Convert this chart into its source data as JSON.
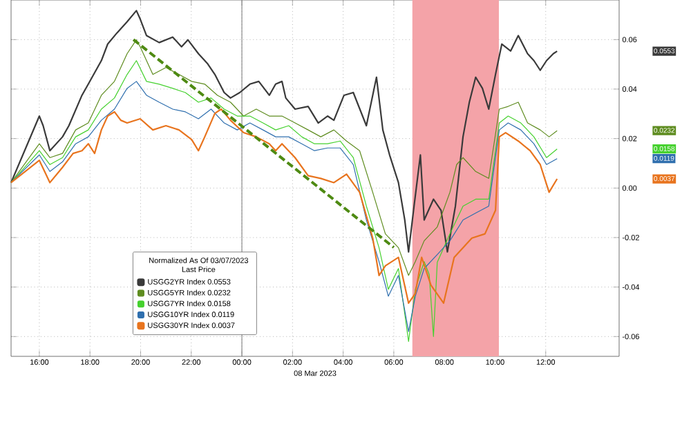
{
  "chart_data": {
    "type": "line",
    "xlabel": "08 Mar 2023",
    "legend_title": "Normalized As Of 03/07/2023 Last Price",
    "legend": "bottom left",
    "grid": true,
    "xlim": [
      "2023-03-07T14:53",
      "2023-03-08T14:54"
    ],
    "ylim": [
      -0.068,
      0.076
    ],
    "xticks": [
      {
        "value": "2023-03-07T16:00",
        "label": "16:00"
      },
      {
        "value": "2023-03-07T18:00",
        "label": "18:00"
      },
      {
        "value": "2023-03-07T20:00",
        "label": "20:00"
      },
      {
        "value": "2023-03-07T22:00",
        "label": "22:00"
      },
      {
        "value": "2023-03-08T00:00",
        "label": "00:00"
      },
      {
        "value": "2023-03-08T02:00",
        "label": "02:00"
      },
      {
        "value": "2023-03-08T04:00",
        "label": "04:00"
      },
      {
        "value": "2023-03-08T06:00",
        "label": "06:00"
      },
      {
        "value": "2023-03-08T08:00",
        "label": "08:00"
      },
      {
        "value": "2023-03-08T10:00",
        "label": "10:00"
      },
      {
        "value": "2023-03-08T12:00",
        "label": "12:00"
      }
    ],
    "yticks": [
      -0.06,
      -0.04,
      -0.02,
      {
        "value": 0,
        "label": "0.00"
      },
      0.02,
      0.04,
      0.06
    ],
    "ref_lines": [
      {
        "axis": "x",
        "value": "2023-03-08T00:00",
        "color": "#8c8c8c"
      }
    ],
    "bands": [
      {
        "axis": "x",
        "from": "2023-03-08T06:44",
        "to": "2023-03-08T10:09",
        "color": "#f4a3a8"
      }
    ],
    "series": [
      {
        "name": "USGG2YR Index 0.0553",
        "color": "#3a3a3a",
        "x": [
          "2023-03-07T14:53",
          "2023-03-07T16:00",
          "2023-03-07T16:09",
          "2023-03-07T16:25",
          "2023-03-07T16:55",
          "2023-03-07T17:10",
          "2023-03-07T17:41",
          "2023-03-07T17:56",
          "2023-03-07T18:27",
          "2023-03-07T18:42",
          "2023-03-07T19:04",
          "2023-03-07T19:28",
          "2023-03-07T19:50",
          "2023-03-07T19:59",
          "2023-03-07T20:14",
          "2023-03-07T20:44",
          "2023-03-07T21:16",
          "2023-03-07T21:37",
          "2023-03-07T21:52",
          "2023-03-07T22:17",
          "2023-03-07T22:38",
          "2023-03-07T22:56",
          "2023-03-07T23:18",
          "2023-03-07T23:33",
          "2023-03-07T23:55",
          "2023-03-08T00:19",
          "2023-03-08T00:40",
          "2023-03-08T01:05",
          "2023-03-08T01:20",
          "2023-03-08T01:35",
          "2023-03-08T01:44",
          "2023-03-08T02:06",
          "2023-03-08T02:37",
          "2023-03-08T03:01",
          "2023-03-08T03:23",
          "2023-03-08T03:38",
          "2023-03-08T04:02",
          "2023-03-08T04:24",
          "2023-03-08T04:55",
          "2023-03-08T05:19",
          "2023-03-08T05:34",
          "2023-03-08T05:50",
          "2023-03-08T06:11",
          "2023-03-08T06:26",
          "2023-03-08T06:35",
          "2023-03-08T06:48",
          "2023-03-08T07:03",
          "2023-03-08T07:12",
          "2023-03-08T07:34",
          "2023-03-08T07:52",
          "2023-03-08T08:07",
          "2023-03-08T08:26",
          "2023-03-08T08:44",
          "2023-03-08T08:59",
          "2023-03-08T09:14",
          "2023-03-08T09:30",
          "2023-03-08T09:45",
          "2023-03-08T10:01",
          "2023-03-08T10:16",
          "2023-03-08T10:37",
          "2023-03-08T10:55",
          "2023-03-08T11:17",
          "2023-03-08T11:32",
          "2023-03-08T11:47",
          "2023-03-08T12:02",
          "2023-03-08T12:18",
          "2023-03-08T12:27"
        ],
        "values": [
          0.0022,
          0.0291,
          0.0252,
          0.0151,
          0.0207,
          0.0252,
          0.0375,
          0.042,
          0.0515,
          0.0582,
          0.0627,
          0.0672,
          0.0717,
          0.0683,
          0.0616,
          0.0588,
          0.061,
          0.0571,
          0.0599,
          0.0543,
          0.0504,
          0.0459,
          0.0386,
          0.0364,
          0.0386,
          0.042,
          0.0431,
          0.0375,
          0.042,
          0.0431,
          0.0364,
          0.0319,
          0.033,
          0.0263,
          0.0291,
          0.0274,
          0.0375,
          0.0386,
          0.0252,
          0.0448,
          0.0235,
          0.0134,
          0.0022,
          -0.0129,
          -0.0258,
          -0.0073,
          0.0134,
          -0.0129,
          -0.0045,
          -0.009,
          -0.0258,
          -0.0073,
          0.0207,
          0.0347,
          0.0448,
          0.0403,
          0.0319,
          0.0459,
          0.0582,
          0.0554,
          0.0616,
          0.0543,
          0.0515,
          0.0476,
          0.0515,
          0.0543,
          0.0553
        ]
      },
      {
        "name": "USGG5YR Index 0.0232",
        "color": "#5e8c1f",
        "x": [
          "2023-03-07T14:53",
          "2023-03-07T16:00",
          "2023-03-07T16:25",
          "2023-03-07T16:55",
          "2023-03-07T17:26",
          "2023-03-07T17:56",
          "2023-03-07T18:27",
          "2023-03-07T18:58",
          "2023-03-07T19:28",
          "2023-03-07T19:50",
          "2023-03-07T19:59",
          "2023-03-07T20:29",
          "2023-03-07T21:00",
          "2023-03-07T21:31",
          "2023-03-07T22:01",
          "2023-03-07T22:32",
          "2023-03-07T23:02",
          "2023-03-07T23:33",
          "2023-03-08T00:04",
          "2023-03-08T00:34",
          "2023-03-08T01:05",
          "2023-03-08T01:35",
          "2023-03-08T02:06",
          "2023-03-08T02:37",
          "2023-03-08T03:07",
          "2023-03-08T03:38",
          "2023-03-08T04:08",
          "2023-03-08T04:39",
          "2023-03-08T05:10",
          "2023-03-08T05:40",
          "2023-03-08T06:11",
          "2023-03-08T06:35",
          "2023-03-08T06:51",
          "2023-03-08T07:12",
          "2023-03-08T07:43",
          "2023-03-08T08:13",
          "2023-03-08T08:29",
          "2023-03-08T08:44",
          "2023-03-08T09:14",
          "2023-03-08T09:45",
          "2023-03-08T10:10",
          "2023-03-08T10:31",
          "2023-03-08T10:55",
          "2023-03-08T11:17",
          "2023-03-08T11:47",
          "2023-03-08T12:08",
          "2023-03-08T12:27"
        ],
        "values": [
          0.0022,
          0.0179,
          0.0123,
          0.014,
          0.0235,
          0.0263,
          0.0375,
          0.0431,
          0.0543,
          0.0599,
          0.0571,
          0.0459,
          0.0487,
          0.0459,
          0.0431,
          0.042,
          0.0375,
          0.0347,
          0.0291,
          0.0319,
          0.0291,
          0.0291,
          0.0263,
          0.0235,
          0.0207,
          0.0235,
          0.019,
          0.0151,
          -0.0017,
          -0.0185,
          -0.0241,
          -0.0353,
          -0.0297,
          -0.0213,
          -0.0157,
          -0.0017,
          0.0095,
          0.0123,
          0.0067,
          0.0039,
          0.0319,
          0.033,
          0.0347,
          0.0263,
          0.0235,
          0.0207,
          0.0232
        ]
      },
      {
        "name": "USGG7YR Index 0.0158",
        "color": "#45d12e",
        "x": [
          "2023-03-07T14:53",
          "2023-03-07T16:00",
          "2023-03-07T16:25",
          "2023-03-07T16:55",
          "2023-03-07T17:26",
          "2023-03-07T17:56",
          "2023-03-07T18:27",
          "2023-03-07T18:58",
          "2023-03-07T19:28",
          "2023-03-07T19:50",
          "2023-03-07T20:14",
          "2023-03-07T20:44",
          "2023-03-07T21:16",
          "2023-03-07T21:46",
          "2023-03-07T22:17",
          "2023-03-07T22:47",
          "2023-03-07T23:18",
          "2023-03-07T23:49",
          "2023-03-08T00:19",
          "2023-03-08T00:50",
          "2023-03-08T01:20",
          "2023-03-08T01:51",
          "2023-03-08T02:22",
          "2023-03-08T02:52",
          "2023-03-08T03:23",
          "2023-03-08T03:53",
          "2023-03-08T04:24",
          "2023-03-08T04:55",
          "2023-03-08T05:25",
          "2023-03-08T05:47",
          "2023-03-08T06:11",
          "2023-03-08T06:35",
          "2023-03-08T06:51",
          "2023-03-08T07:12",
          "2023-03-08T07:24",
          "2023-03-08T07:34",
          "2023-03-08T07:43",
          "2023-03-08T08:13",
          "2023-03-08T08:44",
          "2023-03-08T09:14",
          "2023-03-08T09:45",
          "2023-03-08T10:10",
          "2023-03-08T10:31",
          "2023-03-08T11:01",
          "2023-03-08T11:32",
          "2023-03-08T12:02",
          "2023-03-08T12:27"
        ],
        "values": [
          0.0022,
          0.0151,
          0.0095,
          0.0123,
          0.0207,
          0.0235,
          0.0319,
          0.0364,
          0.0459,
          0.0515,
          0.0431,
          0.042,
          0.0403,
          0.0386,
          0.0347,
          0.0364,
          0.0319,
          0.0291,
          0.0291,
          0.0263,
          0.0235,
          0.0252,
          0.0207,
          0.0179,
          0.0179,
          0.019,
          0.0123,
          -0.0073,
          -0.0241,
          -0.0409,
          -0.0325,
          -0.062,
          -0.0409,
          -0.0297,
          -0.035,
          -0.06,
          -0.03,
          -0.0185,
          -0.0073,
          -0.0045,
          -0.0045,
          0.0263,
          0.0291,
          0.0263,
          0.0207,
          0.0123,
          0.0158
        ]
      },
      {
        "name": "USGG10YR Index 0.0119",
        "color": "#2f6fae",
        "x": [
          "2023-03-07T14:53",
          "2023-03-07T16:00",
          "2023-03-07T16:25",
          "2023-03-07T16:55",
          "2023-03-07T17:26",
          "2023-03-07T17:56",
          "2023-03-07T18:27",
          "2023-03-07T18:58",
          "2023-03-07T19:28",
          "2023-03-07T19:50",
          "2023-03-07T20:14",
          "2023-03-07T20:44",
          "2023-03-07T21:16",
          "2023-03-07T21:46",
          "2023-03-07T22:17",
          "2023-03-07T22:47",
          "2023-03-07T23:18",
          "2023-03-07T23:49",
          "2023-03-08T00:19",
          "2023-03-08T00:50",
          "2023-03-08T01:20",
          "2023-03-08T01:51",
          "2023-03-08T02:22",
          "2023-03-08T02:52",
          "2023-03-08T03:23",
          "2023-03-08T03:53",
          "2023-03-08T04:24",
          "2023-03-08T04:55",
          "2023-03-08T05:25",
          "2023-03-08T05:47",
          "2023-03-08T06:11",
          "2023-03-08T06:35",
          "2023-03-08T06:51",
          "2023-03-08T07:12",
          "2023-03-08T07:43",
          "2023-03-08T08:13",
          "2023-03-08T08:44",
          "2023-03-08T09:14",
          "2023-03-08T09:45",
          "2023-03-08T10:10",
          "2023-03-08T10:31",
          "2023-03-08T11:01",
          "2023-03-08T11:32",
          "2023-03-08T12:02",
          "2023-03-08T12:27"
        ],
        "values": [
          0.0022,
          0.0134,
          0.0067,
          0.0106,
          0.0179,
          0.0207,
          0.0274,
          0.0319,
          0.0403,
          0.0431,
          0.0375,
          0.0347,
          0.0319,
          0.0308,
          0.028,
          0.0319,
          0.0263,
          0.0235,
          0.0263,
          0.0235,
          0.0207,
          0.0207,
          0.0179,
          0.0151,
          0.0162,
          0.0162,
          0.0095,
          -0.0129,
          -0.0297,
          -0.0437,
          -0.0353,
          -0.058,
          -0.0437,
          -0.0325,
          -0.0269,
          -0.0213,
          -0.0129,
          -0.0101,
          -0.0073,
          0.0235,
          0.0263,
          0.0235,
          0.0179,
          0.0095,
          0.0119
        ]
      },
      {
        "name": "USGG30YR Index 0.0037",
        "color": "#e8741e",
        "x": [
          "2023-03-07T14:53",
          "2023-03-07T16:00",
          "2023-03-07T16:25",
          "2023-03-07T16:55",
          "2023-03-07T17:20",
          "2023-03-07T17:41",
          "2023-03-07T17:56",
          "2023-03-07T18:11",
          "2023-03-07T18:27",
          "2023-03-07T18:42",
          "2023-03-07T18:58",
          "2023-03-07T19:13",
          "2023-03-07T19:28",
          "2023-03-07T19:59",
          "2023-03-07T20:29",
          "2023-03-07T21:00",
          "2023-03-07T21:31",
          "2023-03-07T22:01",
          "2023-03-07T22:17",
          "2023-03-07T22:32",
          "2023-03-07T22:56",
          "2023-03-07T23:11",
          "2023-03-07T23:33",
          "2023-03-08T00:04",
          "2023-03-08T00:34",
          "2023-03-08T01:05",
          "2023-03-08T01:20",
          "2023-03-08T01:35",
          "2023-03-08T02:06",
          "2023-03-08T02:37",
          "2023-03-08T03:07",
          "2023-03-08T03:38",
          "2023-03-08T04:08",
          "2023-03-08T04:39",
          "2023-03-08T05:10",
          "2023-03-08T05:25",
          "2023-03-08T05:40",
          "2023-03-08T06:11",
          "2023-03-08T06:35",
          "2023-03-08T06:51",
          "2023-03-08T07:06",
          "2023-03-08T07:28",
          "2023-03-08T07:58",
          "2023-03-08T08:23",
          "2023-03-08T08:44",
          "2023-03-08T09:05",
          "2023-03-08T09:36",
          "2023-03-08T10:01",
          "2023-03-08T10:10",
          "2023-03-08T10:25",
          "2023-03-08T10:55",
          "2023-03-08T11:23",
          "2023-03-08T11:47",
          "2023-03-08T12:08",
          "2023-03-08T12:27"
        ],
        "values": [
          0.0022,
          0.0112,
          0.0022,
          0.0084,
          0.014,
          0.0151,
          0.0179,
          0.014,
          0.0235,
          0.0291,
          0.0308,
          0.0274,
          0.0263,
          0.028,
          0.0235,
          0.0252,
          0.0235,
          0.0196,
          0.0151,
          0.0207,
          0.0302,
          0.0319,
          0.0274,
          0.0224,
          0.0207,
          0.0179,
          0.0151,
          0.0179,
          0.0123,
          0.005,
          0.0039,
          0.0022,
          0.0056,
          -0.0017,
          -0.0202,
          -0.0353,
          -0.0314,
          -0.028,
          -0.0465,
          -0.0426,
          -0.028,
          -0.0392,
          -0.0465,
          -0.028,
          -0.0241,
          -0.0202,
          -0.0185,
          -0.009,
          0.0207,
          0.0224,
          0.019,
          0.0151,
          0.0095,
          -0.0017,
          0.0037
        ]
      },
      {
        "type": "line",
        "color": "#4e8a12",
        "line_style": "dashed",
        "x": [
          "2023-03-07T19:43",
          "2023-03-08T06:00"
        ],
        "values": [
          0.06,
          -0.024
        ]
      }
    ],
    "annotations": [
      "0.0553",
      "0.0232",
      "0.0158",
      "0.0119",
      "0.0037"
    ]
  }
}
